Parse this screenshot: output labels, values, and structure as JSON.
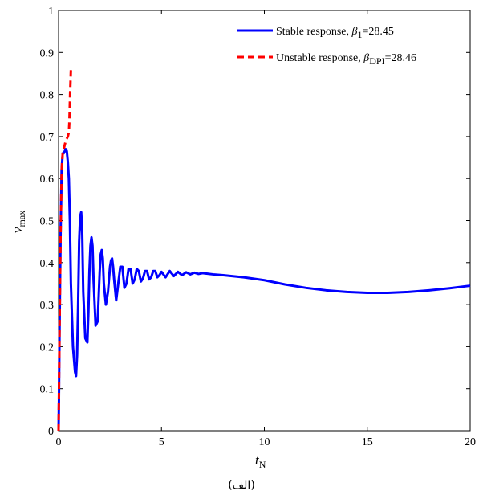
{
  "caption": "(الف)",
  "chart_data": {
    "type": "line",
    "xlabel": {
      "main": "t",
      "sub": "N"
    },
    "ylabel": {
      "main": "v",
      "sub": "max"
    },
    "xlim": [
      0,
      20
    ],
    "ylim": [
      0,
      1
    ],
    "xticks": [
      "0",
      "5",
      "10",
      "15",
      "20"
    ],
    "yticks": [
      "0",
      "0.1",
      "0.2",
      "0.3",
      "0.4",
      "0.5",
      "0.6",
      "0.7",
      "0.8",
      "0.9",
      "1"
    ],
    "grid": false,
    "legend_position": "top-right",
    "series": [
      {
        "legend_prefix": "Stable response, ",
        "legend_symbol": "β",
        "legend_subscript": "1",
        "legend_suffix": "=28.45",
        "color": "#0000ff",
        "style": "solid",
        "x": [
          0,
          0.02,
          0.05,
          0.1,
          0.15,
          0.2,
          0.25,
          0.3,
          0.35,
          0.4,
          0.45,
          0.5,
          0.55,
          0.6,
          0.7,
          0.8,
          0.85,
          0.9,
          0.95,
          1.0,
          1.05,
          1.1,
          1.15,
          1.2,
          1.3,
          1.4,
          1.45,
          1.5,
          1.55,
          1.6,
          1.65,
          1.7,
          1.8,
          1.9,
          2.0,
          2.05,
          2.1,
          2.15,
          2.2,
          2.3,
          2.4,
          2.5,
          2.55,
          2.6,
          2.65,
          2.7,
          2.8,
          2.9,
          3.0,
          3.1,
          3.2,
          3.3,
          3.4,
          3.5,
          3.6,
          3.7,
          3.8,
          3.9,
          4.0,
          4.1,
          4.2,
          4.3,
          4.4,
          4.5,
          4.6,
          4.7,
          4.8,
          4.9,
          5.0,
          5.2,
          5.4,
          5.6,
          5.8,
          6.0,
          6.2,
          6.4,
          6.6,
          6.8,
          7.0,
          7.5,
          8.0,
          9.0,
          10.0,
          11.0,
          12.0,
          13.0,
          14.0,
          15.0,
          16.0,
          17.0,
          18.0,
          19.0,
          20.0
        ],
        "y": [
          0.0,
          0.08,
          0.25,
          0.47,
          0.62,
          0.66,
          0.66,
          0.665,
          0.67,
          0.665,
          0.64,
          0.6,
          0.5,
          0.35,
          0.2,
          0.14,
          0.13,
          0.18,
          0.3,
          0.45,
          0.51,
          0.52,
          0.47,
          0.33,
          0.22,
          0.21,
          0.28,
          0.38,
          0.44,
          0.46,
          0.44,
          0.36,
          0.25,
          0.26,
          0.38,
          0.42,
          0.43,
          0.41,
          0.35,
          0.3,
          0.33,
          0.39,
          0.405,
          0.41,
          0.39,
          0.36,
          0.31,
          0.35,
          0.39,
          0.39,
          0.34,
          0.35,
          0.385,
          0.385,
          0.35,
          0.36,
          0.385,
          0.38,
          0.355,
          0.362,
          0.38,
          0.38,
          0.36,
          0.365,
          0.38,
          0.38,
          0.365,
          0.37,
          0.378,
          0.365,
          0.38,
          0.368,
          0.378,
          0.37,
          0.377,
          0.372,
          0.376,
          0.373,
          0.375,
          0.372,
          0.37,
          0.365,
          0.358,
          0.348,
          0.34,
          0.334,
          0.33,
          0.328,
          0.328,
          0.33,
          0.334,
          0.339,
          0.345
        ]
      },
      {
        "legend_prefix": "Unstable response, ",
        "legend_symbol": "β",
        "legend_subscript": "DPI",
        "legend_suffix": "=28.46",
        "color": "#ff0000",
        "style": "dashed",
        "x": [
          0,
          0.05,
          0.1,
          0.15,
          0.2,
          0.25,
          0.3,
          0.35,
          0.4,
          0.45,
          0.5,
          0.52,
          0.54,
          0.56,
          0.58,
          0.6
        ],
        "y": [
          0.0,
          0.25,
          0.47,
          0.62,
          0.66,
          0.67,
          0.68,
          0.69,
          0.695,
          0.7,
          0.71,
          0.73,
          0.76,
          0.8,
          0.83,
          0.86
        ]
      }
    ]
  }
}
